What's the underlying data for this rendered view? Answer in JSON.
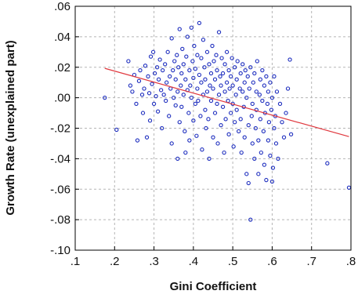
{
  "chart_data": {
    "type": "scatter",
    "title": "",
    "xlabel": "Gini Coefficient",
    "ylabel": "Growth Rate (unexplained part)",
    "xlim": [
      0.1,
      0.8
    ],
    "ylim": [
      -0.1,
      0.06
    ],
    "x_ticks": [
      0.1,
      0.2,
      0.3,
      0.4,
      0.5,
      0.6,
      0.7,
      0.8
    ],
    "x_tick_labels": [
      ".1",
      ".2",
      ".3",
      ".4",
      ".5",
      ".6",
      ".7",
      ".8"
    ],
    "y_ticks": [
      -0.1,
      -0.08,
      -0.06,
      -0.04,
      -0.02,
      0.0,
      0.02,
      0.04,
      0.06
    ],
    "y_tick_labels": [
      "-.10",
      "-.08",
      "-.06",
      "-.04",
      "-.02",
      ".00",
      ".02",
      ".04",
      ".06"
    ],
    "grid": true,
    "marker_color": "#1f2fbf",
    "fit_color": "#e0383e",
    "fit_line": {
      "x": [
        0.175,
        0.795
      ],
      "y": [
        0.0193,
        -0.0255
      ]
    },
    "points": [
      [
        0.175,
        0.0
      ],
      [
        0.205,
        -0.021
      ],
      [
        0.235,
        0.024
      ],
      [
        0.24,
        0.008
      ],
      [
        0.245,
        0.004
      ],
      [
        0.25,
        0.015
      ],
      [
        0.255,
        -0.004
      ],
      [
        0.258,
        -0.028
      ],
      [
        0.262,
        0.011
      ],
      [
        0.265,
        0.018
      ],
      [
        0.27,
        0.002
      ],
      [
        0.272,
        -0.01
      ],
      [
        0.275,
        0.006
      ],
      [
        0.278,
        0.021
      ],
      [
        0.282,
        -0.026
      ],
      [
        0.285,
        0.014
      ],
      [
        0.288,
        0.003
      ],
      [
        0.29,
        -0.015
      ],
      [
        0.292,
        0.027
      ],
      [
        0.295,
        0.009
      ],
      [
        0.298,
        0.03
      ],
      [
        0.3,
        -0.004
      ],
      [
        0.302,
        0.016
      ],
      [
        0.305,
        0.001
      ],
      [
        0.308,
        0.02
      ],
      [
        0.31,
        -0.009
      ],
      [
        0.312,
        0.012
      ],
      [
        0.315,
        0.025
      ],
      [
        0.318,
        0.005
      ],
      [
        0.32,
        -0.02
      ],
      [
        0.322,
        0.018
      ],
      [
        0.325,
        0.002
      ],
      [
        0.328,
        0.022
      ],
      [
        0.33,
        -0.002
      ],
      [
        0.332,
        0.01
      ],
      [
        0.335,
        0.03
      ],
      [
        0.338,
        -0.012
      ],
      [
        0.34,
        0.014
      ],
      [
        0.342,
        0.006
      ],
      [
        0.345,
        -0.03
      ],
      [
        0.345,
        0.039
      ],
      [
        0.348,
        0.018
      ],
      [
        0.35,
        0.0
      ],
      [
        0.352,
        0.024
      ],
      [
        0.355,
        -0.005
      ],
      [
        0.355,
        0.012
      ],
      [
        0.358,
        0.028
      ],
      [
        0.36,
        -0.04
      ],
      [
        0.36,
        0.004
      ],
      [
        0.362,
        0.02
      ],
      [
        0.365,
        -0.016
      ],
      [
        0.365,
        0.045
      ],
      [
        0.368,
        0.008
      ],
      [
        0.37,
        0.016
      ],
      [
        0.37,
        -0.006
      ],
      [
        0.372,
        0.032
      ],
      [
        0.375,
        0.002
      ],
      [
        0.375,
        0.022
      ],
      [
        0.378,
        -0.022
      ],
      [
        0.38,
        0.012
      ],
      [
        0.38,
        -0.036
      ],
      [
        0.382,
        0.027
      ],
      [
        0.385,
        0.005
      ],
      [
        0.385,
        0.04
      ],
      [
        0.388,
        -0.01
      ],
      [
        0.39,
        0.018
      ],
      [
        0.39,
        -0.028
      ],
      [
        0.392,
        0.008
      ],
      [
        0.395,
        0.046
      ],
      [
        0.395,
        0.0
      ],
      [
        0.398,
        0.024
      ],
      [
        0.4,
        -0.015
      ],
      [
        0.4,
        0.013
      ],
      [
        0.402,
        0.034
      ],
      [
        0.405,
        -0.004
      ],
      [
        0.405,
        0.019
      ],
      [
        0.408,
        -0.025
      ],
      [
        0.41,
        0.006
      ],
      [
        0.41,
        0.028
      ],
      [
        0.412,
        -0.002
      ],
      [
        0.415,
        0.015
      ],
      [
        0.415,
        0.049
      ],
      [
        0.418,
        -0.012
      ],
      [
        0.42,
        0.01
      ],
      [
        0.42,
        0.026
      ],
      [
        0.422,
        -0.034
      ],
      [
        0.425,
        0.002
      ],
      [
        0.425,
        0.038
      ],
      [
        0.428,
        0.02
      ],
      [
        0.43,
        -0.008
      ],
      [
        0.43,
        0.012
      ],
      [
        0.432,
        -0.02
      ],
      [
        0.435,
        0.03
      ],
      [
        0.435,
        0.004
      ],
      [
        0.438,
        -0.014
      ],
      [
        0.44,
        0.022
      ],
      [
        0.44,
        -0.04
      ],
      [
        0.442,
        0.008
      ],
      [
        0.445,
        -0.002
      ],
      [
        0.445,
        0.016
      ],
      [
        0.448,
        0.034
      ],
      [
        0.45,
        -0.026
      ],
      [
        0.45,
        0.006
      ],
      [
        0.452,
        0.024
      ],
      [
        0.455,
        -0.01
      ],
      [
        0.455,
        0.012
      ],
      [
        0.458,
        0.028
      ],
      [
        0.46,
        -0.004
      ],
      [
        0.46,
        0.018
      ],
      [
        0.462,
        -0.03
      ],
      [
        0.465,
        0.002
      ],
      [
        0.465,
        0.043
      ],
      [
        0.468,
        0.014
      ],
      [
        0.47,
        -0.018
      ],
      [
        0.47,
        0.008
      ],
      [
        0.472,
        0.026
      ],
      [
        0.475,
        -0.006
      ],
      [
        0.475,
        0.016
      ],
      [
        0.478,
        -0.036
      ],
      [
        0.48,
        0.004
      ],
      [
        0.48,
        0.022
      ],
      [
        0.482,
        -0.014
      ],
      [
        0.485,
        0.01
      ],
      [
        0.485,
        0.03
      ],
      [
        0.488,
        -0.002
      ],
      [
        0.49,
        0.018
      ],
      [
        0.49,
        -0.024
      ],
      [
        0.492,
        0.006
      ],
      [
        0.495,
        -0.01
      ],
      [
        0.495,
        0.014
      ],
      [
        0.498,
        0.026
      ],
      [
        0.5,
        -0.004
      ],
      [
        0.5,
        0.008
      ],
      [
        0.502,
        -0.032
      ],
      [
        0.505,
        0.02
      ],
      [
        0.505,
        -0.016
      ],
      [
        0.508,
        0.002
      ],
      [
        0.51,
        0.012
      ],
      [
        0.51,
        -0.008
      ],
      [
        0.512,
        0.024
      ],
      [
        0.515,
        -0.022
      ],
      [
        0.518,
        0.006
      ],
      [
        0.52,
        0.016
      ],
      [
        0.52,
        -0.014
      ],
      [
        0.522,
        -0.036
      ],
      [
        0.525,
        0.004
      ],
      [
        0.525,
        0.022
      ],
      [
        0.528,
        -0.006
      ],
      [
        0.53,
        0.01
      ],
      [
        0.53,
        -0.026
      ],
      [
        0.532,
        0.018
      ],
      [
        0.535,
        -0.05
      ],
      [
        0.535,
        0.0
      ],
      [
        0.538,
        0.014
      ],
      [
        0.54,
        -0.018
      ],
      [
        0.54,
        -0.056
      ],
      [
        0.542,
        0.006
      ],
      [
        0.545,
        -0.08
      ],
      [
        0.545,
        0.02
      ],
      [
        0.548,
        -0.012
      ],
      [
        0.55,
        -0.004
      ],
      [
        0.55,
        -0.03
      ],
      [
        0.552,
        0.01
      ],
      [
        0.555,
        -0.04
      ],
      [
        0.555,
        0.016
      ],
      [
        0.558,
        -0.02
      ],
      [
        0.56,
        0.004
      ],
      [
        0.56,
        -0.008
      ],
      [
        0.562,
        0.024
      ],
      [
        0.565,
        -0.028
      ],
      [
        0.565,
        -0.05
      ],
      [
        0.568,
        0.002
      ],
      [
        0.57,
        0.012
      ],
      [
        0.57,
        -0.014
      ],
      [
        0.572,
        -0.036
      ],
      [
        0.575,
        0.018
      ],
      [
        0.575,
        -0.002
      ],
      [
        0.578,
        -0.022
      ],
      [
        0.58,
        0.008
      ],
      [
        0.58,
        -0.044
      ],
      [
        0.582,
        -0.01
      ],
      [
        0.585,
        0.014
      ],
      [
        0.585,
        -0.054
      ],
      [
        0.588,
        -0.004
      ],
      [
        0.59,
        0.004
      ],
      [
        0.59,
        -0.028
      ],
      [
        0.592,
        -0.016
      ],
      [
        0.595,
        0.01
      ],
      [
        0.595,
        -0.038
      ],
      [
        0.598,
        -0.008
      ],
      [
        0.6,
        0.0
      ],
      [
        0.6,
        -0.055
      ],
      [
        0.602,
        -0.046
      ],
      [
        0.605,
        -0.02
      ],
      [
        0.605,
        0.014
      ],
      [
        0.608,
        -0.012
      ],
      [
        0.61,
        -0.03
      ],
      [
        0.612,
        0.004
      ],
      [
        0.615,
        -0.04
      ],
      [
        0.62,
        -0.004
      ],
      [
        0.625,
        -0.016
      ],
      [
        0.63,
        -0.026
      ],
      [
        0.635,
        -0.01
      ],
      [
        0.64,
        0.006
      ],
      [
        0.645,
        0.025
      ],
      [
        0.648,
        -0.024
      ],
      [
        0.74,
        -0.043
      ],
      [
        0.795,
        -0.059
      ]
    ]
  }
}
